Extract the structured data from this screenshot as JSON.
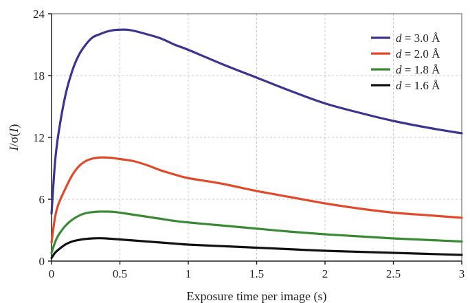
{
  "chart_data": {
    "type": "line",
    "title": "",
    "xlabel": "Exposure time per image (s)",
    "ylabel": "I/σ(I)",
    "ylabel_parts": {
      "var": "I",
      "mid": "/σ(",
      "var2": "I",
      "end": ")"
    },
    "xlim": [
      0,
      3
    ],
    "ylim": [
      0,
      24
    ],
    "xticks": [
      "0",
      "0.5",
      "1",
      "1.5",
      "2",
      "2.5",
      "3"
    ],
    "xtick_values": [
      0,
      0.5,
      1,
      1.5,
      2,
      2.5,
      3
    ],
    "yticks": [
      "0",
      "6",
      "12",
      "18",
      "24"
    ],
    "ytick_values": [
      0,
      6,
      12,
      18,
      24
    ],
    "grid": true,
    "legend_position": "top-right",
    "series": [
      {
        "name": "d = 3.0 Å",
        "label_var": "d",
        "label_rest": " = 3.0 Å",
        "color": "#3a3590",
        "x": [
          0.0,
          0.025,
          0.05,
          0.1,
          0.15,
          0.2,
          0.25,
          0.3,
          0.35,
          0.4,
          0.45,
          0.5,
          0.55,
          0.6,
          0.7,
          0.8,
          0.9,
          1.0,
          1.25,
          1.5,
          1.75,
          2.0,
          2.25,
          2.5,
          2.75,
          3.0
        ],
        "y": [
          4.6,
          9.5,
          12.3,
          16.0,
          18.4,
          20.0,
          21.0,
          21.7,
          22.0,
          22.25,
          22.4,
          22.45,
          22.45,
          22.35,
          22.0,
          21.6,
          21.0,
          20.5,
          19.1,
          17.8,
          16.5,
          15.3,
          14.4,
          13.6,
          12.95,
          12.4
        ]
      },
      {
        "name": "d = 2.0 Å",
        "label_var": "d",
        "label_rest": " = 2.0 Å",
        "color": "#e04a2a",
        "x": [
          0.0,
          0.025,
          0.05,
          0.1,
          0.15,
          0.2,
          0.25,
          0.3,
          0.35,
          0.4,
          0.45,
          0.5,
          0.6,
          0.7,
          0.8,
          0.9,
          1.0,
          1.25,
          1.5,
          1.75,
          2.0,
          2.25,
          2.5,
          2.75,
          3.0
        ],
        "y": [
          1.8,
          4.2,
          5.5,
          7.0,
          8.3,
          9.2,
          9.7,
          9.95,
          10.05,
          10.05,
          10.0,
          9.9,
          9.7,
          9.3,
          8.8,
          8.4,
          8.05,
          7.5,
          6.8,
          6.2,
          5.6,
          5.1,
          4.7,
          4.45,
          4.2
        ]
      },
      {
        "name": "d = 1.8 Å",
        "label_var": "d",
        "label_rest": " = 1.8 Å",
        "color": "#3a8a35",
        "x": [
          0.0,
          0.025,
          0.05,
          0.1,
          0.15,
          0.2,
          0.25,
          0.3,
          0.35,
          0.4,
          0.45,
          0.5,
          0.6,
          0.7,
          0.8,
          0.9,
          1.0,
          1.25,
          1.5,
          1.75,
          2.0,
          2.25,
          2.5,
          2.75,
          3.0
        ],
        "y": [
          0.8,
          1.8,
          2.5,
          3.4,
          4.0,
          4.4,
          4.65,
          4.75,
          4.8,
          4.8,
          4.78,
          4.7,
          4.5,
          4.3,
          4.1,
          3.9,
          3.75,
          3.45,
          3.15,
          2.85,
          2.6,
          2.4,
          2.2,
          2.05,
          1.9
        ]
      },
      {
        "name": "d = 1.6 Å",
        "label_var": "d",
        "label_rest": " = 1.6 Å",
        "color": "#111111",
        "x": [
          0.0,
          0.025,
          0.05,
          0.1,
          0.15,
          0.2,
          0.25,
          0.3,
          0.35,
          0.4,
          0.45,
          0.5,
          0.6,
          0.7,
          0.8,
          0.9,
          1.0,
          1.25,
          1.5,
          1.75,
          2.0,
          2.25,
          2.5,
          2.75,
          3.0
        ],
        "y": [
          0.3,
          0.8,
          1.1,
          1.6,
          1.9,
          2.05,
          2.15,
          2.2,
          2.22,
          2.2,
          2.15,
          2.1,
          2.0,
          1.9,
          1.8,
          1.7,
          1.6,
          1.45,
          1.3,
          1.15,
          1.0,
          0.9,
          0.8,
          0.7,
          0.6
        ]
      }
    ]
  }
}
